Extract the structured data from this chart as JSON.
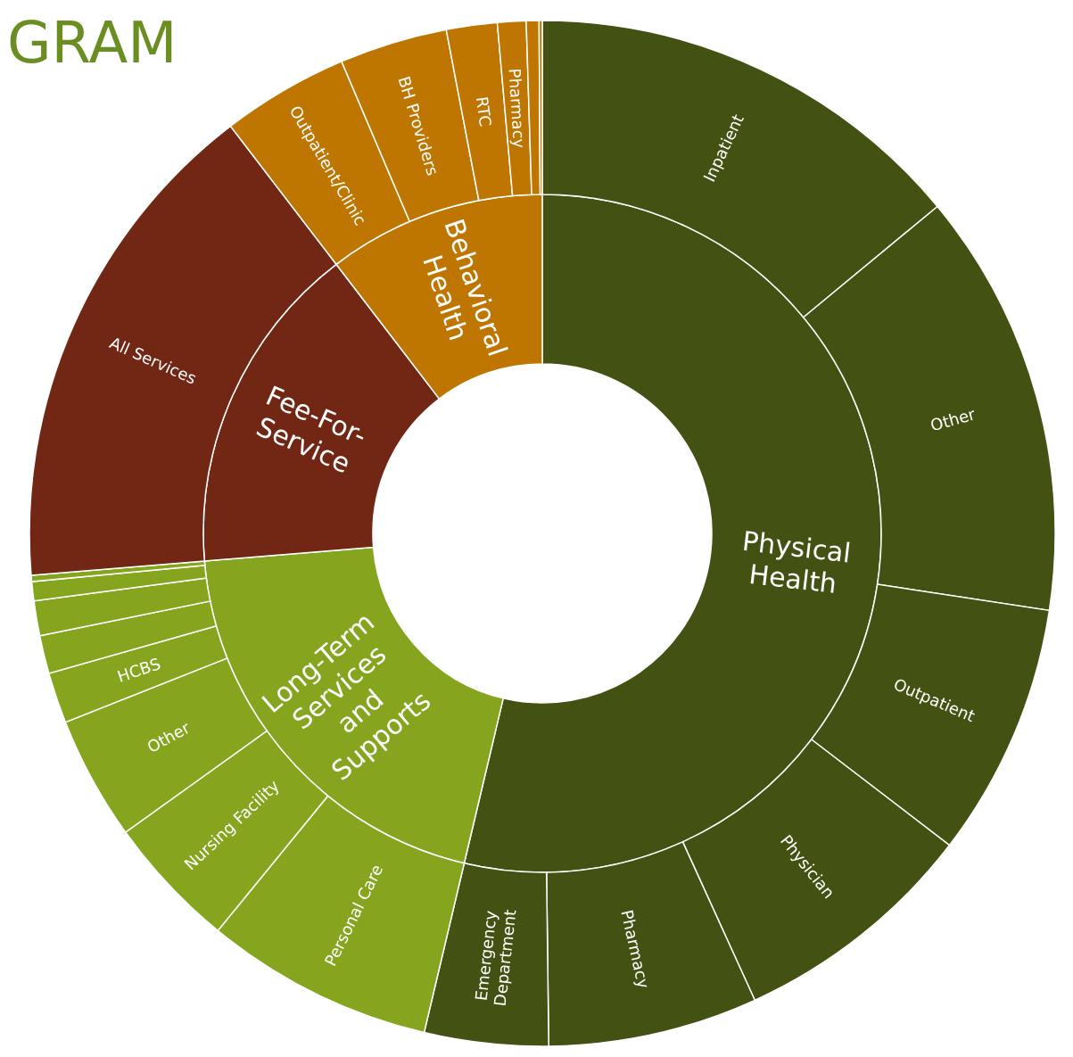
{
  "chart_data": [
    {
      "type": "donut",
      "categories": [
        "Physical Health",
        "Long-Term Services and Supports",
        "Fee-For-Service",
        "Behavioral Health"
      ],
      "values": [
        53.7,
        20.0,
        15.9,
        10.4
      ],
      "colors": [
        "#435213",
        "#86a51f",
        "#722714",
        "#bf7600"
      ]
    },
    {
      "type": "donut",
      "title": "GRAM",
      "categories": [
        "Inpatient",
        "Other",
        "Outpatient",
        "Physician",
        "Pharmacy",
        "Emergency Department",
        "Personal Care",
        "Nursing Facility",
        "Other",
        "HCBS",
        null,
        null,
        null,
        null,
        "All Services",
        "Outpatient/Clinic",
        "BH Providers",
        "RTC",
        "Pharmacy",
        null,
        null
      ],
      "values": [
        14.0,
        13.4,
        8.0,
        7.8,
        6.6,
        3.9,
        7.2,
        4.2,
        3.9,
        1.6,
        1.2,
        1.1,
        0.6,
        0.2,
        15.9,
        4.0,
        3.4,
        1.6,
        0.9,
        0.4,
        0.1
      ],
      "colors": [
        "#435213",
        "#435213",
        "#435213",
        "#435213",
        "#435213",
        "#435213",
        "#86a51f",
        "#86a51f",
        "#86a51f",
        "#86a51f",
        "#86a51f",
        "#86a51f",
        "#86a51f",
        "#86a51f",
        "#722714",
        "#bf7600",
        "#bf7600",
        "#bf7600",
        "#bf7600",
        "#bf7600",
        "#bf7600"
      ]
    }
  ]
}
